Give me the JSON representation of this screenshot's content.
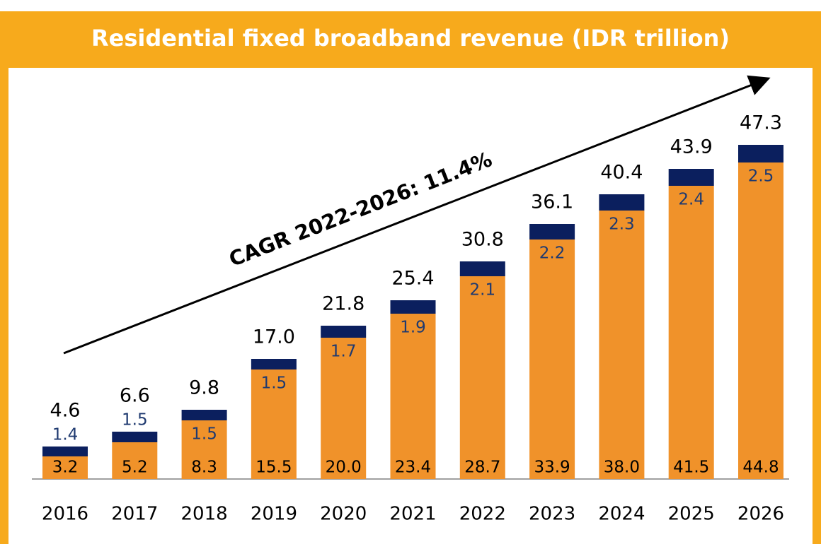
{
  "chart_data": {
    "type": "stacked_bar",
    "title": "Residential fixed broadband revenue (IDR trillion)",
    "annotation": "CAGR 2022-2026:  11.4%",
    "categories": [
      "2016",
      "2017",
      "2018",
      "2019",
      "2020",
      "2021",
      "2022",
      "2023",
      "2024",
      "2025",
      "2026"
    ],
    "series": [
      {
        "color": "#f0922a",
        "label_color": "#000000",
        "values": [
          3.2,
          5.2,
          8.3,
          15.5,
          20,
          23.4,
          28.7,
          33.9,
          38,
          41.5,
          44.8
        ],
        "value_labels": [
          "3.2",
          "5.2",
          "8.3",
          "15.5",
          "20.0",
          "23.4",
          "28.7",
          "33.9",
          "38.0",
          "41.5",
          "44.8"
        ]
      },
      {
        "color": "#0b1f5e",
        "label_color": "#1f3a70",
        "values": [
          1.4,
          1.5,
          1.5,
          1.5,
          1.7,
          1.9,
          2.1,
          2.2,
          2.3,
          2.4,
          2.5
        ]
      }
    ],
    "totals": {
      "values": [
        4.6,
        6.6,
        9.8,
        17,
        21.8,
        25.4,
        30.8,
        36.1,
        40.4,
        43.9,
        47.3
      ],
      "value_labels": [
        "4.6",
        "6.6",
        "9.8",
        "17.0",
        "21.8",
        "25.4",
        "30.8",
        "36.1",
        "40.4",
        "43.9",
        "47.3"
      ]
    },
    "ylim": [
      0,
      50
    ]
  }
}
